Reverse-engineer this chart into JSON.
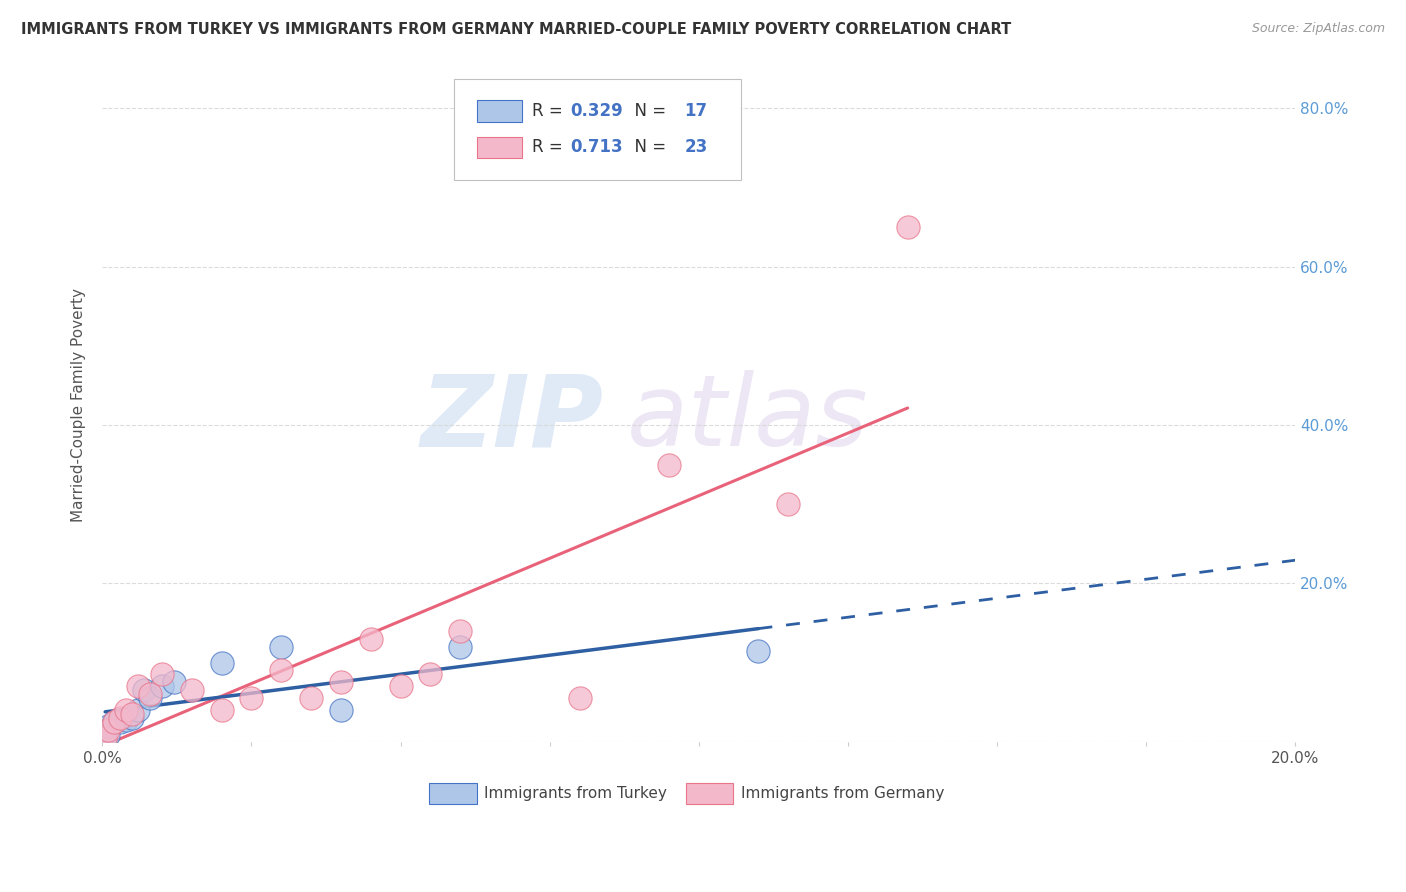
{
  "title": "IMMIGRANTS FROM TURKEY VS IMMIGRANTS FROM GERMANY MARRIED-COUPLE FAMILY POVERTY CORRELATION CHART",
  "source": "Source: ZipAtlas.com",
  "ylabel": "Married-Couple Family Poverty",
  "xlim": [
    0.0,
    0.2
  ],
  "ylim": [
    0.0,
    0.85
  ],
  "ytick_positions": [
    0.0,
    0.2,
    0.4,
    0.6,
    0.8
  ],
  "ytick_labels": [
    "",
    "20.0%",
    "40.0%",
    "60.0%",
    "80.0%"
  ],
  "xtick_positions": [
    0.0,
    0.025,
    0.05,
    0.075,
    0.1,
    0.125,
    0.15,
    0.175,
    0.2
  ],
  "turkey_color": "#aec6e8",
  "germany_color": "#f4b8cb",
  "turkey_edge_color": "#4472c4",
  "germany_edge_color": "#e8758a",
  "turkey_line_color": "#2e5fa3",
  "germany_line_color": "#e8637a",
  "R_turkey": 0.329,
  "N_turkey": 17,
  "R_germany": 0.713,
  "N_germany": 23,
  "turkey_x": [
    0.0005,
    0.001,
    0.001,
    0.002,
    0.003,
    0.004,
    0.005,
    0.006,
    0.007,
    0.008,
    0.01,
    0.012,
    0.02,
    0.03,
    0.04,
    0.06,
    0.11
  ],
  "turkey_y": [
    0.005,
    0.008,
    0.02,
    0.025,
    0.025,
    0.028,
    0.03,
    0.04,
    0.065,
    0.055,
    0.07,
    0.075,
    0.1,
    0.12,
    0.04,
    0.12,
    0.115
  ],
  "germany_x": [
    0.0005,
    0.001,
    0.002,
    0.003,
    0.004,
    0.005,
    0.006,
    0.008,
    0.01,
    0.015,
    0.02,
    0.025,
    0.03,
    0.035,
    0.04,
    0.045,
    0.05,
    0.055,
    0.06,
    0.08,
    0.095,
    0.115,
    0.135
  ],
  "germany_y": [
    0.005,
    0.015,
    0.025,
    0.03,
    0.04,
    0.035,
    0.07,
    0.06,
    0.085,
    0.065,
    0.04,
    0.055,
    0.09,
    0.055,
    0.075,
    0.13,
    0.07,
    0.085,
    0.14,
    0.055,
    0.35,
    0.3,
    0.65
  ],
  "watermark_zip": "ZIP",
  "watermark_atlas": "atlas",
  "background_color": "#ffffff",
  "grid_color": "#d8d8d8",
  "legend_text_color": "#333333",
  "legend_value_color": "#4472c4",
  "right_axis_color": "#5b9bd5"
}
